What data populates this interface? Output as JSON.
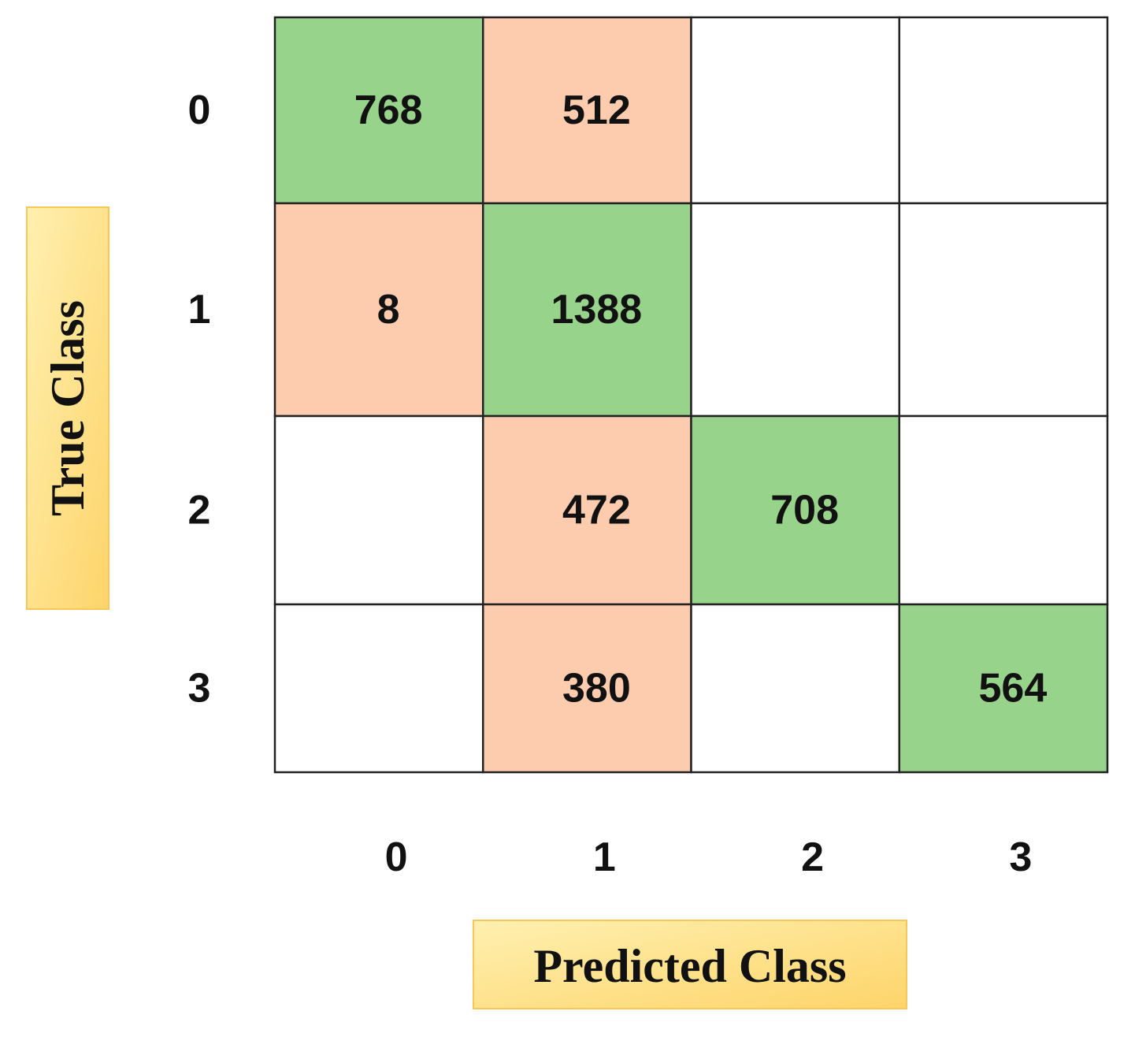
{
  "chart_data": {
    "type": "confusion_matrix",
    "x_label": "Predicted Class",
    "y_label": "True Class",
    "columns": [
      "0",
      "1",
      "2",
      "3"
    ],
    "rows": [
      "0",
      "1",
      "2",
      "3"
    ],
    "values": [
      [
        768,
        512,
        null,
        null
      ],
      [
        8,
        1388,
        null,
        null
      ],
      [
        null,
        472,
        708,
        null
      ],
      [
        null,
        380,
        null,
        564
      ]
    ],
    "diagonal_color": "#97d38b",
    "off_diagonal_color": "#fdcbad"
  }
}
